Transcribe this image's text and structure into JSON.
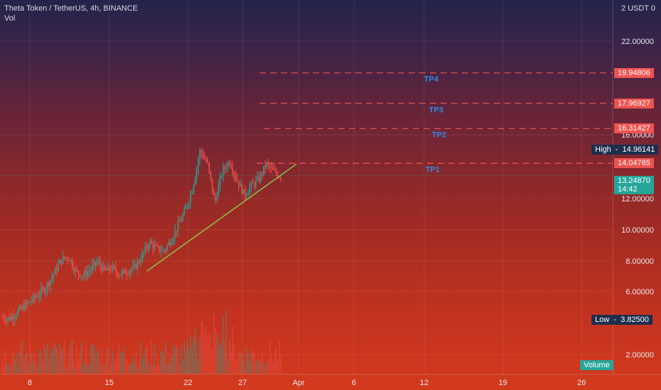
{
  "header": {
    "symbol_line": "Theta Token / TetherUS, 4h, BINANCE",
    "indicator": "Vol",
    "currency": "2 USDT 0"
  },
  "colors": {
    "up": "#26a69a",
    "down": "#ef5350",
    "trendline": "#8bc34a",
    "tp_line": "#ef5350",
    "tp_label": "#2f8be6",
    "price_badge": "#26a69a",
    "stat_badge": "#1e2f4e"
  },
  "chart_data": {
    "type": "candlestick",
    "x_tick_labels": [
      "8",
      "15",
      "22",
      "27",
      "Apr",
      "6",
      "12",
      "19",
      "26"
    ],
    "y_tick_labels": [
      "22.00000",
      "16.00000",
      "12.00000",
      "10.00000",
      "8.00000",
      "6.00000",
      "2.00000"
    ],
    "ylim": [
      1,
      24
    ],
    "close_series": [
      4.0,
      3.9,
      4.3,
      4.7,
      5.1,
      5.5,
      6.0,
      6.8,
      7.7,
      8.0,
      7.0,
      6.7,
      7.1,
      7.6,
      7.0,
      7.2,
      6.8,
      7.0,
      7.2,
      7.9,
      8.9,
      8.5,
      8.3,
      9.0,
      10.0,
      11.0,
      12.5,
      14.9,
      14.0,
      11.5,
      13.5,
      14.2,
      13.0,
      12.0,
      12.6,
      13.0,
      14.0,
      13.5,
      13.2
    ],
    "trendline": {
      "start": [
        7.0
      ],
      "end": [
        14.0
      ]
    },
    "targets": [
      {
        "label": "TP1",
        "value": 14.04765,
        "badge": "14.04765"
      },
      {
        "label": "TP2",
        "value": 16.31427,
        "badge": "16.31427"
      },
      {
        "label": "TP3",
        "value": 17.96927,
        "badge": "17.96927"
      },
      {
        "label": "TP4",
        "value": 19.94806,
        "badge": "19.94806"
      }
    ],
    "high": {
      "label": "High",
      "value": "14.96141"
    },
    "low": {
      "label": "Low",
      "value": "3.82500"
    },
    "current": {
      "price": "13.24870",
      "countdown": "14:42"
    },
    "volume_label": "Volume"
  }
}
